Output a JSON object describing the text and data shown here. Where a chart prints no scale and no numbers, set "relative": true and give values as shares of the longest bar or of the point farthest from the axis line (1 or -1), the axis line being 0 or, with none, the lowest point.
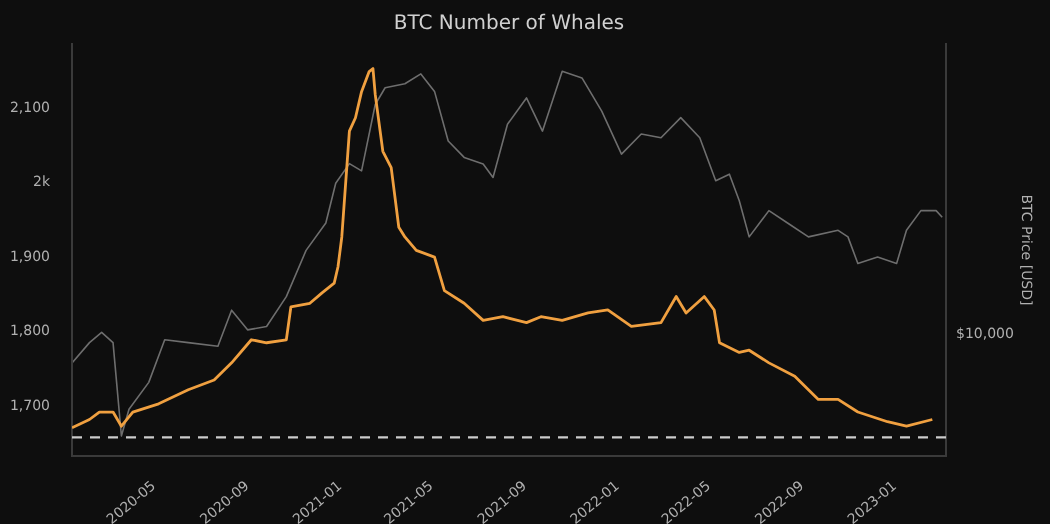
{
  "chart_data": [
    {
      "type": "line",
      "title": "BTC Number of Whales",
      "marker": "none",
      "grid": false,
      "xlim": [
        "2020-01-14",
        "2023-03-09"
      ],
      "xticks": [
        "2020-05",
        "2020-09",
        "2021-01",
        "2021-05",
        "2021-09",
        "2022-01",
        "2022-05",
        "2022-09",
        "2023-01"
      ],
      "ylim": [
        1633,
        2186
      ],
      "yticks": [
        {
          "value": 1700,
          "label": "1,700"
        },
        {
          "value": 1800,
          "label": "1,800"
        },
        {
          "value": 1900,
          "label": "1,900"
        },
        {
          "value": 2000,
          "label": "2k"
        },
        {
          "value": 2100,
          "label": "2,100"
        }
      ],
      "ref_lines": [
        {
          "axis": "y",
          "value": 1658,
          "color": "#cccccc",
          "line_style": "dashed"
        }
      ],
      "series": [
        {
          "color": "#f0a040",
          "x": [
            "2020-01-14",
            "2020-02-06",
            "2020-02-19",
            "2020-03-08",
            "2020-03-19",
            "2020-04-03",
            "2020-05-07",
            "2020-06-15",
            "2020-07-19",
            "2020-08-11",
            "2020-09-06",
            "2020-09-26",
            "2020-10-22",
            "2020-10-28",
            "2020-11-22",
            "2020-12-08",
            "2020-12-24",
            "2020-12-29",
            "2021-01-03",
            "2021-01-13",
            "2021-01-21",
            "2021-01-29",
            "2021-02-08",
            "2021-02-13",
            "2021-02-16",
            "2021-02-26",
            "2021-03-09",
            "2021-03-19",
            "2021-03-27",
            "2021-04-11",
            "2021-05-05",
            "2021-05-18",
            "2021-06-13",
            "2021-07-08",
            "2021-08-03",
            "2021-09-03",
            "2021-09-22",
            "2021-10-20",
            "2021-11-23",
            "2021-12-19",
            "2022-01-19",
            "2022-02-27",
            "2022-03-19",
            "2022-04-01",
            "2022-04-25",
            "2022-05-08",
            "2022-05-15",
            "2022-06-10",
            "2022-06-23",
            "2022-07-19",
            "2022-08-22",
            "2022-09-22",
            "2022-10-18",
            "2022-11-13",
            "2022-12-22",
            "2023-01-16",
            "2023-02-19"
          ],
          "values": [
            1671,
            1682,
            1692,
            1692,
            1673,
            1692,
            1703,
            1722,
            1735,
            1758,
            1789,
            1785,
            1789,
            1833,
            1838,
            1852,
            1865,
            1887,
            1927,
            2069,
            2087,
            2122,
            2149,
            2153,
            2118,
            2042,
            2020,
            1940,
            1927,
            1909,
            1900,
            1855,
            1838,
            1815,
            1820,
            1812,
            1820,
            1815,
            1825,
            1829,
            1807,
            1812,
            1847,
            1825,
            1847,
            1829,
            1785,
            1772,
            1775,
            1758,
            1740,
            1709,
            1709,
            1692,
            1679,
            1673,
            1682
          ]
        }
      ]
    },
    {
      "type": "line",
      "relative": true,
      "y2label": "BTC Price [USD]",
      "annotations": [
        "$10,000"
      ],
      "marker": "none",
      "xlim": [
        "2020-01-14",
        "2023-03-09"
      ],
      "series": [
        {
          "color": "#6e6e6e",
          "axis": "y2",
          "x": [
            "2020-01-14",
            "2020-02-06",
            "2020-02-22",
            "2020-03-08",
            "2020-03-19",
            "2020-03-29",
            "2020-04-24",
            "2020-05-15",
            "2020-06-15",
            "2020-07-24",
            "2020-08-11",
            "2020-09-01",
            "2020-09-26",
            "2020-10-22",
            "2020-11-17",
            "2020-12-13",
            "2020-12-26",
            "2021-01-13",
            "2021-01-29",
            "2021-02-16",
            "2021-03-01",
            "2021-03-27",
            "2021-04-17",
            "2021-05-05",
            "2021-05-23",
            "2021-06-13",
            "2021-07-08",
            "2021-07-21",
            "2021-08-09",
            "2021-09-03",
            "2021-09-24",
            "2021-10-20",
            "2021-11-15",
            "2021-12-11",
            "2022-01-06",
            "2022-02-01",
            "2022-02-27",
            "2022-03-25",
            "2022-04-19",
            "2022-05-10",
            "2022-05-28",
            "2022-06-10",
            "2022-06-23",
            "2022-07-19",
            "2022-08-14",
            "2022-09-09",
            "2022-10-18",
            "2022-10-31",
            "2022-11-13",
            "2022-12-09",
            "2023-01-03",
            "2023-01-16",
            "2023-02-04",
            "2023-02-24",
            "2023-03-04"
          ],
          "values": [
            0.2,
            0.256,
            0.284,
            0.256,
            0,
            0.073,
            0.147,
            0.264,
            0.256,
            0.246,
            0.345,
            0.291,
            0.3,
            0.382,
            0.509,
            0.584,
            0.693,
            0.747,
            0.727,
            0.909,
            0.955,
            0.966,
            0.993,
            0.945,
            0.809,
            0.764,
            0.746,
            0.709,
            0.855,
            0.927,
            0.836,
            1,
            0.982,
            0.891,
            0.773,
            0.828,
            0.818,
            0.873,
            0.818,
            0.7,
            0.718,
            0.645,
            0.546,
            0.618,
            0.582,
            0.546,
            0.564,
            0.546,
            0.473,
            0.491,
            0.473,
            0.564,
            0.618,
            0.618,
            0.6
          ]
        }
      ]
    }
  ]
}
